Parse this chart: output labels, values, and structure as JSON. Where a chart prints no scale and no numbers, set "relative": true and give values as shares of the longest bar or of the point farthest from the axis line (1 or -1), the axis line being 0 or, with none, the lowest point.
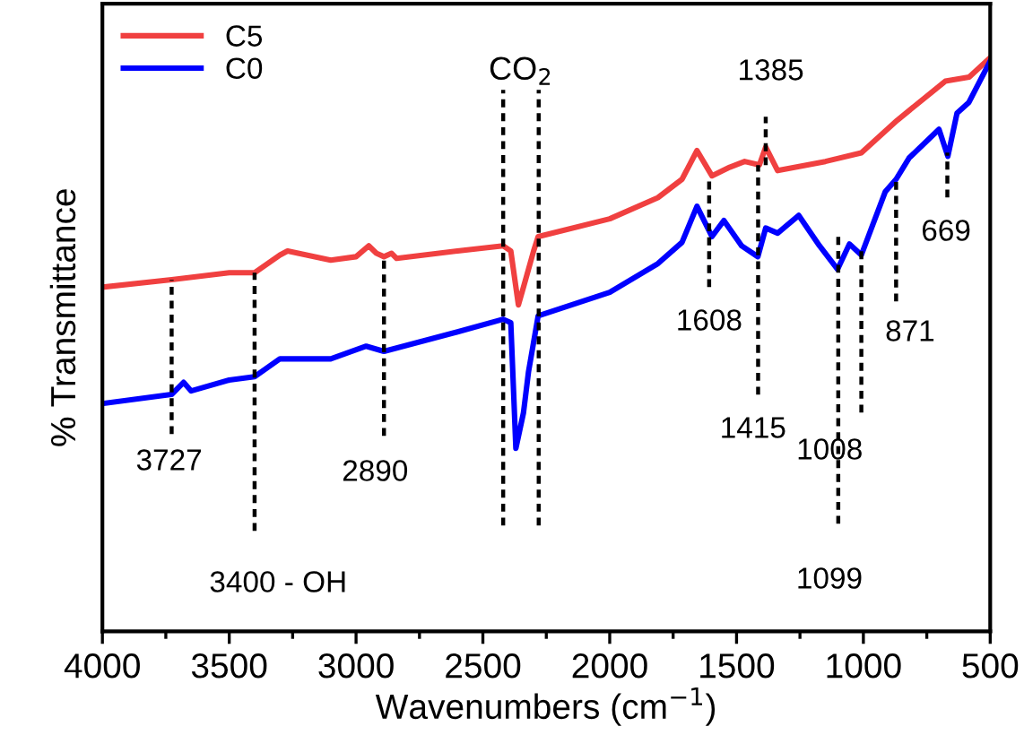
{
  "chart_data": {
    "type": "line",
    "relative": true,
    "xlabel": "Wavenumbers (cm$^{−1}$)",
    "ylabel": "% Transmittance",
    "xlim": [
      4000,
      500
    ],
    "xticks": [
      4000,
      3500,
      3000,
      2500,
      2000,
      1500,
      1000,
      500
    ],
    "legend": "top left",
    "grid": false,
    "marker": "none",
    "line_style": "solid",
    "series": [
      {
        "name": "C5",
        "color": "#f04040",
        "x": [
          4000,
          3727,
          3500,
          3400,
          3300,
          3270,
          3100,
          3000,
          2950,
          2920,
          2890,
          2860,
          2840,
          2600,
          2420,
          2390,
          2360,
          2340,
          2300,
          2282,
          2000,
          1810,
          1715,
          1656,
          1597,
          1527,
          1468,
          1410,
          1385,
          1338,
          1150,
          1008,
          866,
          677,
          583,
          500
        ],
        "values": [
          0.6,
          0.613,
          0.625,
          0.625,
          0.656,
          0.663,
          0.647,
          0.653,
          0.672,
          0.659,
          0.653,
          0.659,
          0.65,
          0.663,
          0.672,
          0.663,
          0.569,
          0.6,
          0.663,
          0.688,
          0.719,
          0.756,
          0.788,
          0.838,
          0.794,
          0.809,
          0.819,
          0.813,
          0.844,
          0.803,
          0.819,
          0.834,
          0.891,
          0.959,
          0.966,
          1.0
        ]
      },
      {
        "name": "C0",
        "color": "#0000ff",
        "x": [
          4000,
          3727,
          3680,
          3650,
          3500,
          3400,
          3300,
          3100,
          2960,
          2890,
          2600,
          2420,
          2390,
          2370,
          2340,
          2320,
          2282,
          2000,
          1810,
          1715,
          1656,
          1597,
          1550,
          1480,
          1416,
          1385,
          1338,
          1255,
          1173,
          1102,
          1055,
          1008,
          914,
          871,
          820,
          702,
          667,
          631,
          584,
          500
        ],
        "values": [
          0.397,
          0.413,
          0.434,
          0.419,
          0.438,
          0.444,
          0.475,
          0.475,
          0.497,
          0.488,
          0.522,
          0.544,
          0.538,
          0.319,
          0.381,
          0.453,
          0.55,
          0.591,
          0.641,
          0.678,
          0.741,
          0.688,
          0.716,
          0.672,
          0.653,
          0.703,
          0.694,
          0.725,
          0.672,
          0.631,
          0.675,
          0.656,
          0.766,
          0.788,
          0.825,
          0.875,
          0.828,
          0.903,
          0.922,
          0.994
        ]
      }
    ],
    "ref_lines": [
      {
        "axis": "x",
        "value": 3727,
        "label": "3727",
        "line_style": "dashed",
        "color": "#000000"
      },
      {
        "axis": "x",
        "value": 3400,
        "label": "3400 - OH",
        "line_style": "dashed",
        "color": "#000000"
      },
      {
        "axis": "x",
        "value": 2890,
        "label": "2890",
        "line_style": "dashed",
        "color": "#000000"
      },
      {
        "axis": "x",
        "value": 2420,
        "label": null,
        "line_style": "dashed",
        "color": "#000000"
      },
      {
        "axis": "x",
        "value": 2280,
        "label": null,
        "line_style": "dashed",
        "color": "#000000"
      },
      {
        "axis": "x",
        "value": 1608,
        "label": "1608",
        "line_style": "dashed",
        "color": "#000000"
      },
      {
        "axis": "x",
        "value": 1385,
        "label": "1385",
        "line_style": "dashed",
        "color": "#000000"
      },
      {
        "axis": "x",
        "value": 1415,
        "label": "1415",
        "line_style": "dashed",
        "color": "#000000"
      },
      {
        "axis": "x",
        "value": 1099,
        "label": "1099",
        "line_style": "dashed",
        "color": "#000000"
      },
      {
        "axis": "x",
        "value": 1008,
        "label": "1008",
        "line_style": "dashed",
        "color": "#000000"
      },
      {
        "axis": "x",
        "value": 871,
        "label": "871",
        "line_style": "dashed",
        "color": "#000000"
      },
      {
        "axis": "x",
        "value": 669,
        "label": "669",
        "line_style": "dashed",
        "color": "#000000"
      }
    ],
    "annotations": [
      "CO$_{2}$"
    ]
  }
}
